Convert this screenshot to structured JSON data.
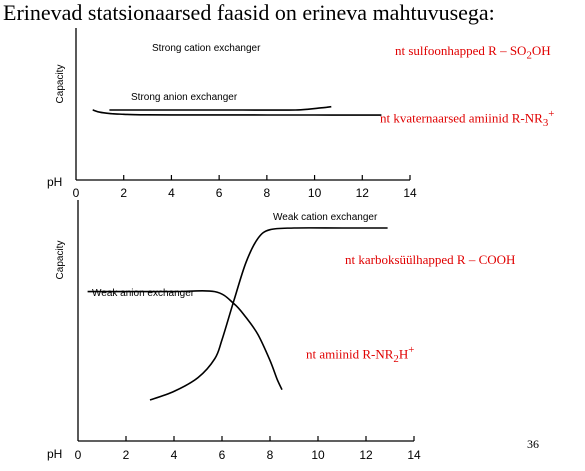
{
  "title": "Erinevad statsionaarsed faasid on erineva mahtuvusega:",
  "notes": {
    "n1_pre": "nt sulfoonhapped R – SO",
    "n1_sub": "2",
    "n1_post": "OH",
    "n2_pre": "nt kvaternaarsed amiinid R-NR",
    "n2_sub": "3",
    "n2_sup": "+",
    "n3": "nt karboksüülhapped R – COOH",
    "n4_pre": "nt amiinid R-NR",
    "n4_sub": "2",
    "n4_post": "H",
    "n4_sup": "+"
  },
  "page_number": "36",
  "chart_data": [
    {
      "type": "line",
      "xlabel": "pH",
      "ylabel": "Capacity",
      "xlim": [
        0,
        14
      ],
      "xticks": [
        "0",
        "2",
        "4",
        "6",
        "8",
        "10",
        "12",
        "14"
      ],
      "series": [
        {
          "name": "Strong cation exchanger",
          "points": [
            [
              0.7,
              0.24
            ],
            [
              1.0,
              0.53
            ],
            [
              1.5,
              0.71
            ],
            [
              2.0,
              0.79
            ],
            [
              2.5,
              0.84
            ],
            [
              3.0,
              0.855
            ],
            [
              4.0,
              0.86
            ],
            [
              6.0,
              0.866
            ],
            [
              8.0,
              0.873
            ],
            [
              10.0,
              0.88
            ],
            [
              12.0,
              0.887
            ],
            [
              12.8,
              0.89
            ]
          ]
        },
        {
          "name": "Strong anion exchanger",
          "points": [
            [
              1.4,
              0.25
            ],
            [
              3.0,
              0.25
            ],
            [
              5.0,
              0.25
            ],
            [
              7.0,
              0.255
            ],
            [
              8.5,
              0.26
            ],
            [
              9.2,
              0.25
            ],
            [
              9.7,
              0.16
            ],
            [
              10.1,
              0.04
            ],
            [
              10.5,
              -0.09
            ],
            [
              10.7,
              -0.16
            ]
          ]
        }
      ]
    },
    {
      "type": "line",
      "xlabel": "pH",
      "ylabel": "Capacity",
      "xlim": [
        0,
        14
      ],
      "xticks": [
        "0",
        "2",
        "4",
        "6",
        "8",
        "10",
        "12",
        "14"
      ],
      "series": [
        {
          "name": "Weak anion exchanger",
          "points": [
            [
              0.4,
              0.63
            ],
            [
              2.0,
              0.63
            ],
            [
              4.0,
              0.63
            ],
            [
              5.7,
              0.63
            ],
            [
              6.5,
              0.56
            ],
            [
              7.0,
              0.48
            ],
            [
              7.5,
              0.38
            ],
            [
              8.0,
              0.23
            ],
            [
              8.3,
              0.12
            ],
            [
              8.5,
              0.06
            ]
          ]
        },
        {
          "name": "Weak cation exchanger",
          "points": [
            [
              3.0,
              0.0
            ],
            [
              4.0,
              0.05
            ],
            [
              5.0,
              0.13
            ],
            [
              5.7,
              0.24
            ],
            [
              6.0,
              0.35
            ],
            [
              6.5,
              0.58
            ],
            [
              7.0,
              0.8
            ],
            [
              7.5,
              0.94
            ],
            [
              8.0,
              0.99
            ],
            [
              9.0,
              1.0
            ],
            [
              11.0,
              1.0
            ],
            [
              12.9,
              1.0
            ]
          ]
        }
      ]
    }
  ]
}
